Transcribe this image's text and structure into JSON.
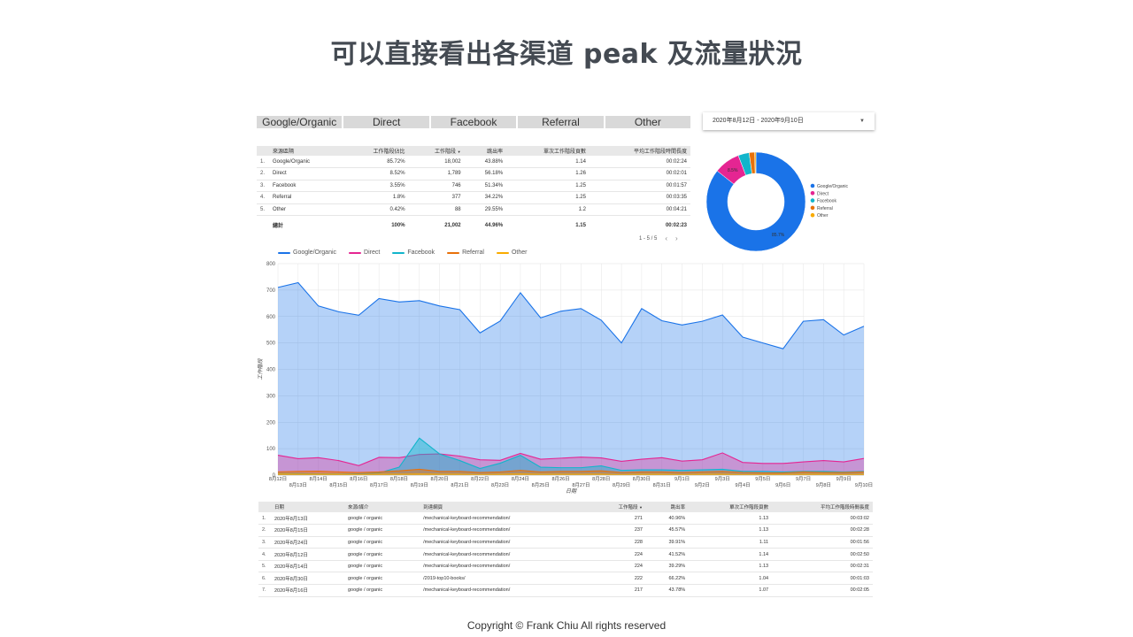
{
  "page": {
    "title": "可以直接看出各渠道 peak 及流量狀況",
    "copyright": "Copyright © Frank Chiu All rights reserved"
  },
  "tabs": [
    "Google/Organic",
    "Direct",
    "Facebook",
    "Referral",
    "Other"
  ],
  "date_range": {
    "label": "2020年8月12日 - 2020年9月10日"
  },
  "channel_table": {
    "headers": [
      "來源區隔",
      "工作階段佔比",
      "工作階段",
      "跳出率",
      "單次工作階段頁數",
      "平均工作階段時間長度"
    ],
    "sort_indicator": "▼",
    "rows": [
      [
        "1.",
        "Google/Organic",
        "85.72%",
        "18,002",
        "43.88%",
        "1.14",
        "00:02:24"
      ],
      [
        "2.",
        "Direct",
        "8.52%",
        "1,789",
        "56.18%",
        "1.26",
        "00:02:01"
      ],
      [
        "3.",
        "Facebook",
        "3.55%",
        "746",
        "51.34%",
        "1.25",
        "00:01:57"
      ],
      [
        "4.",
        "Referral",
        "1.8%",
        "377",
        "34.22%",
        "1.25",
        "00:03:35"
      ],
      [
        "5.",
        "Other",
        "0.42%",
        "88",
        "29.55%",
        "1.2",
        "00:04:21"
      ]
    ],
    "total": [
      "總計",
      "100%",
      "21,002",
      "44.96%",
      "1.15",
      "00:02:23"
    ],
    "pagination": "1 - 5 / 5"
  },
  "colors": {
    "google": "#1a73e8",
    "direct": "#e52592",
    "facebook": "#12b5cb",
    "referral": "#e8710a",
    "other": "#f9ab00"
  },
  "pie": {
    "slices": [
      {
        "name": "Google/Organic",
        "value": 85.7,
        "color": "#1a73e8"
      },
      {
        "name": "Direct",
        "value": 8.5,
        "color": "#e52592"
      },
      {
        "name": "Facebook",
        "value": 3.6,
        "color": "#12b5cb"
      },
      {
        "name": "Referral",
        "value": 1.8,
        "color": "#e8710a"
      },
      {
        "name": "Other",
        "value": 0.4,
        "color": "#f9ab00"
      }
    ],
    "labels": {
      "main": "85.7%",
      "second": "8.5%"
    }
  },
  "chart_data": {
    "type": "area",
    "ylabel": "工作階段",
    "xlabel": "日期",
    "ylim": [
      0,
      800
    ],
    "yticks": [
      0,
      100,
      200,
      300,
      400,
      500,
      600,
      700,
      800
    ],
    "grid": true,
    "legend_position": "top-left",
    "x": [
      "8月12日",
      "8月13日",
      "8月14日",
      "8月15日",
      "8月16日",
      "8月17日",
      "8月18日",
      "8月19日",
      "8月20日",
      "8月21日",
      "8月22日",
      "8月23日",
      "8月24日",
      "8月25日",
      "8月26日",
      "8月27日",
      "8月28日",
      "8月29日",
      "8月30日",
      "8月31日",
      "9月1日",
      "9月2日",
      "9月3日",
      "9月4日",
      "9月5日",
      "9月6日",
      "9月7日",
      "9月8日",
      "9月9日",
      "9月10日"
    ],
    "series": [
      {
        "name": "Google/Organic",
        "color": "#1a73e8",
        "values": [
          710,
          728,
          640,
          618,
          605,
          668,
          655,
          660,
          640,
          626,
          538,
          583,
          690,
          595,
          620,
          630,
          586,
          500,
          630,
          584,
          568,
          582,
          606,
          522,
          500,
          478,
          582,
          588,
          530,
          563
        ]
      },
      {
        "name": "Direct",
        "color": "#e52592",
        "values": [
          75,
          62,
          66,
          55,
          36,
          67,
          66,
          78,
          80,
          72,
          58,
          56,
          82,
          60,
          64,
          68,
          65,
          52,
          60,
          66,
          53,
          58,
          84,
          48,
          44,
          44,
          50,
          55,
          50,
          63
        ]
      },
      {
        "name": "Facebook",
        "color": "#12b5cb",
        "values": [
          6,
          6,
          5,
          5,
          5,
          8,
          30,
          140,
          80,
          55,
          25,
          45,
          75,
          30,
          28,
          28,
          35,
          18,
          20,
          20,
          18,
          20,
          22,
          14,
          14,
          12,
          14,
          14,
          12,
          14
        ]
      },
      {
        "name": "Referral",
        "color": "#e8710a",
        "values": [
          12,
          14,
          15,
          12,
          10,
          12,
          16,
          22,
          14,
          14,
          10,
          12,
          18,
          12,
          14,
          14,
          16,
          10,
          12,
          12,
          10,
          12,
          14,
          10,
          8,
          8,
          12,
          10,
          10,
          12
        ]
      },
      {
        "name": "Other",
        "color": "#f9ab00",
        "values": [
          4,
          3,
          3,
          3,
          2,
          3,
          3,
          4,
          3,
          3,
          2,
          3,
          4,
          3,
          3,
          3,
          3,
          2,
          3,
          3,
          2,
          3,
          3,
          2,
          2,
          2,
          3,
          3,
          2,
          3
        ]
      }
    ]
  },
  "pages_table": {
    "headers": [
      "日期",
      "來源/媒介",
      "到達網頁",
      "工作階段",
      "跳出率",
      "單次工作階段頁數",
      "平均工作階段時間長度"
    ],
    "sort_indicator": "▼",
    "rows": [
      [
        "1.",
        "2020年8月13日",
        "google / organic",
        "/mechanical-keyboard-recommendation/",
        "271",
        "40.96%",
        "1.13",
        "00:03:02"
      ],
      [
        "2.",
        "2020年8月15日",
        "google / organic",
        "/mechanical-keyboard-recommendation/",
        "237",
        "45.57%",
        "1.13",
        "00:02:28"
      ],
      [
        "3.",
        "2020年8月24日",
        "google / organic",
        "/mechanical-keyboard-recommendation/",
        "228",
        "39.91%",
        "1.11",
        "00:01:56"
      ],
      [
        "4.",
        "2020年8月12日",
        "google / organic",
        "/mechanical-keyboard-recommendation/",
        "224",
        "41.52%",
        "1.14",
        "00:02:50"
      ],
      [
        "5.",
        "2020年8月14日",
        "google / organic",
        "/mechanical-keyboard-recommendation/",
        "224",
        "39.29%",
        "1.13",
        "00:02:31"
      ],
      [
        "6.",
        "2020年8月30日",
        "google / organic",
        "/2019-top10-books/",
        "222",
        "66.22%",
        "1.04",
        "00:01:03"
      ],
      [
        "7.",
        "2020年8月16日",
        "google / organic",
        "/mechanical-keyboard-recommendation/",
        "217",
        "43.78%",
        "1.07",
        "00:02:05"
      ]
    ]
  }
}
